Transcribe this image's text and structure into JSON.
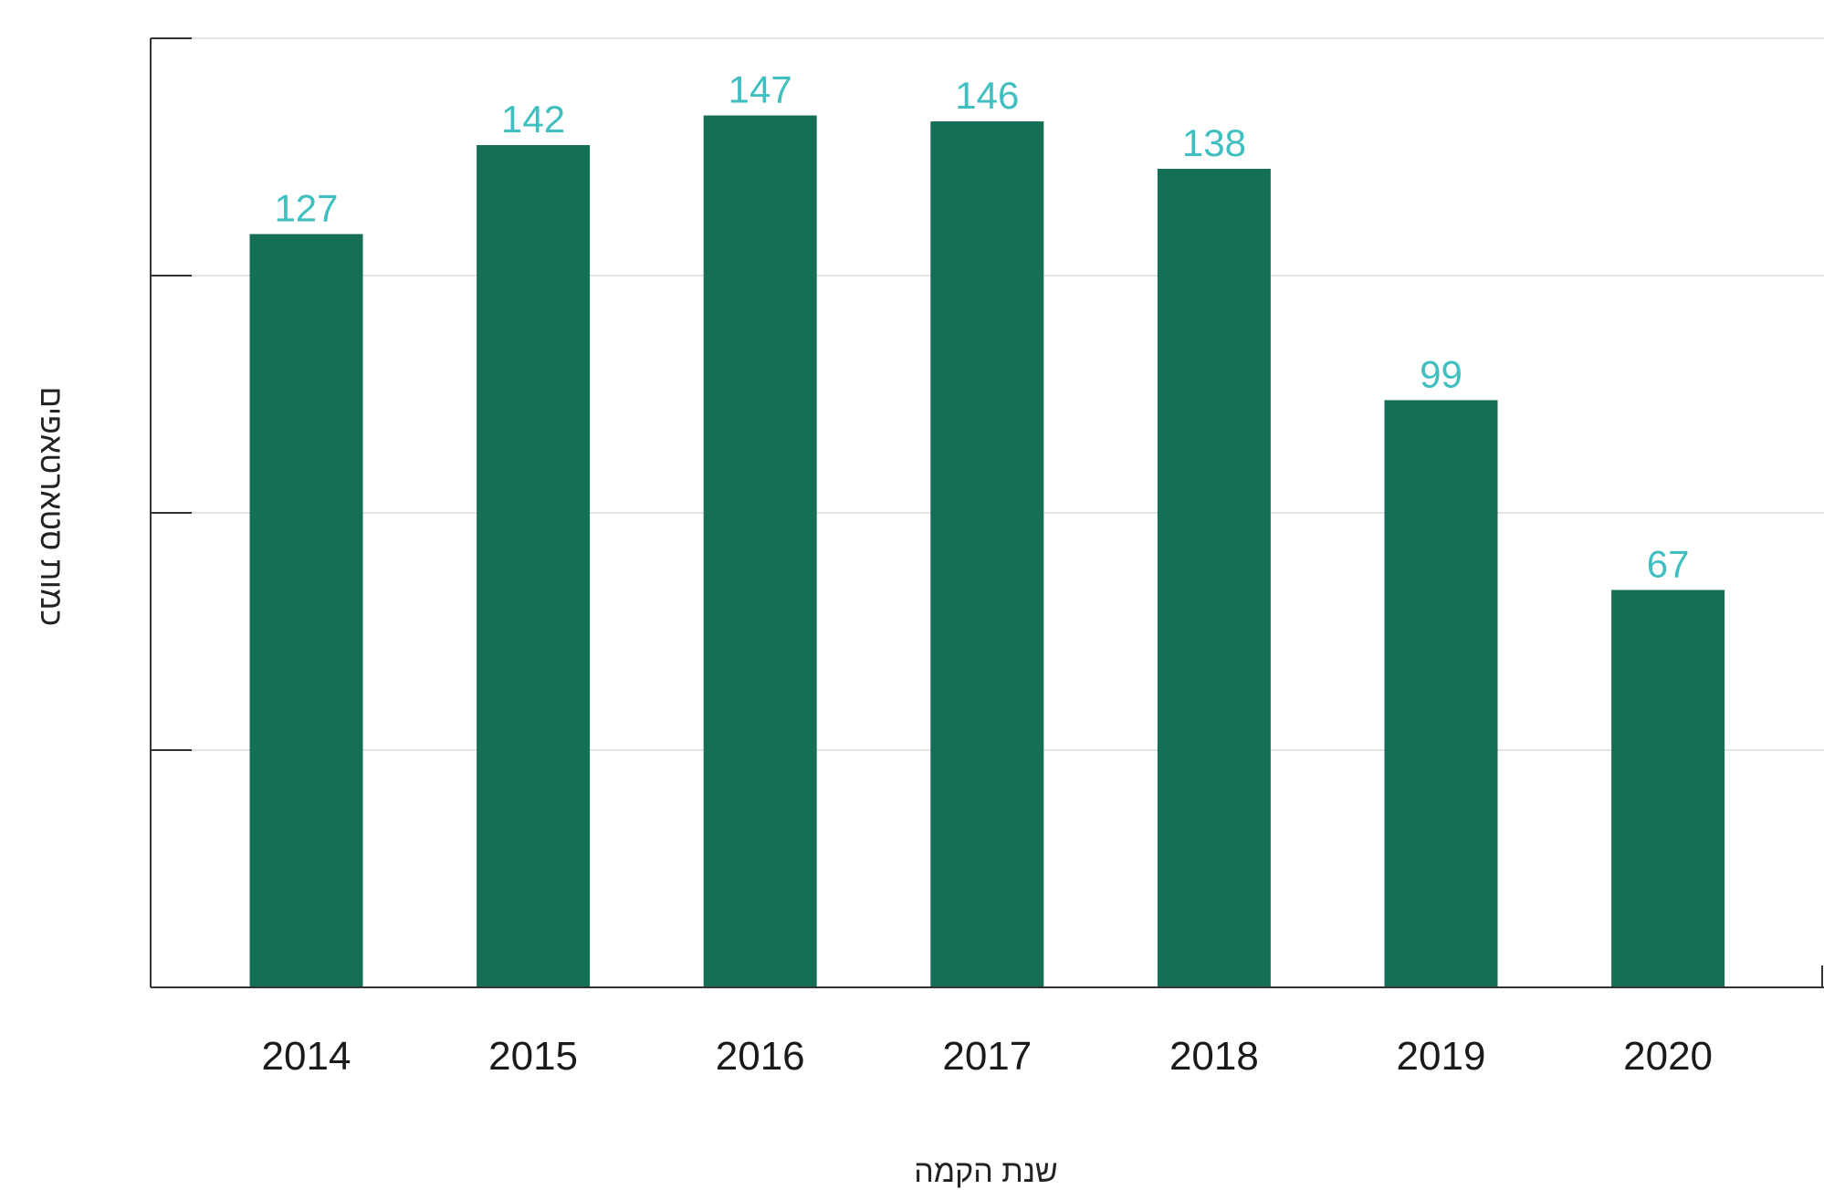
{
  "chart_data": {
    "type": "bar",
    "title": "",
    "xlabel": "שנת הקמה",
    "ylabel": "כמות סטארטאפים",
    "categories": [
      "2014",
      "2015",
      "2016",
      "2017",
      "2018",
      "2019",
      "2020"
    ],
    "values": [
      127,
      142,
      147,
      146,
      138,
      99,
      67
    ],
    "ylim": [
      0,
      160
    ],
    "y_gridlines": [
      40,
      80,
      120,
      160
    ],
    "y_tick_labels_visible": false,
    "grid": true,
    "legend": "none",
    "colors": {
      "bar": "#156e56",
      "data_label": "#3fbfbf",
      "gridline": "#e4e4e4",
      "axis": "#333333"
    }
  }
}
